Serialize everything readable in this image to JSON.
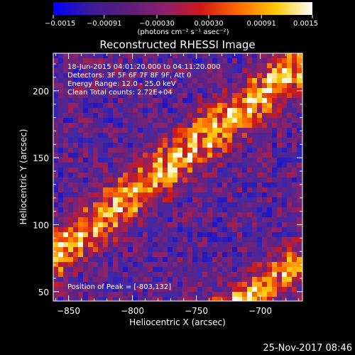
{
  "chart_data": {
    "type": "heatmap",
    "title": "Reconstructed RHESSI Image",
    "xlabel": "Heliocentric X (arcsec)",
    "ylabel": "Heliocentric Y (arcsec)",
    "xlim": [
      -862,
      -667
    ],
    "ylim": [
      43,
      228
    ],
    "x_ticks": [
      {
        "v": -850,
        "label": "−850"
      },
      {
        "v": -800,
        "label": "−800"
      },
      {
        "v": -750,
        "label": "−750"
      },
      {
        "v": -700,
        "label": "−700"
      }
    ],
    "y_ticks": [
      {
        "v": 50,
        "label": "50"
      },
      {
        "v": 100,
        "label": "100"
      },
      {
        "v": 150,
        "label": "150"
      },
      {
        "v": 200,
        "label": "200"
      }
    ],
    "colorbar": {
      "min": -0.0015,
      "max": 0.0015,
      "ticks": [
        {
          "v": -0.0015,
          "label": "−0.0015"
        },
        {
          "v": -0.00091,
          "label": "−0.00091"
        },
        {
          "v": -0.0003,
          "label": "−0.00030"
        },
        {
          "v": 0.0003,
          "label": "0.00030"
        },
        {
          "v": 0.00091,
          "label": "0.00091"
        },
        {
          "v": 0.0015,
          "label": "0.0015"
        }
      ],
      "unit_label": "(photons cm⁻² s⁻¹ asec⁻²)",
      "colors": [
        "#0000ff",
        "#3c1a99",
        "#5a1f78",
        "#8a2070",
        "#d01818",
        "#ff6a00",
        "#ffc800",
        "#ffffff"
      ]
    },
    "annotations": [
      "18-Jun-2015 04:01:20.000 to 04:11:20.000",
      "Detectors: 3F 5F 6F 7F 8F 9F, Att 0",
      "Energy Range: 12.0 - 25.0 keV",
      "Clean     Total counts: 2.72E+04"
    ],
    "peak_label": "Position of Peak = [-803,132]",
    "peak": [
      -803,
      132
    ],
    "footer_date": "25-Nov-2017 08:46"
  }
}
